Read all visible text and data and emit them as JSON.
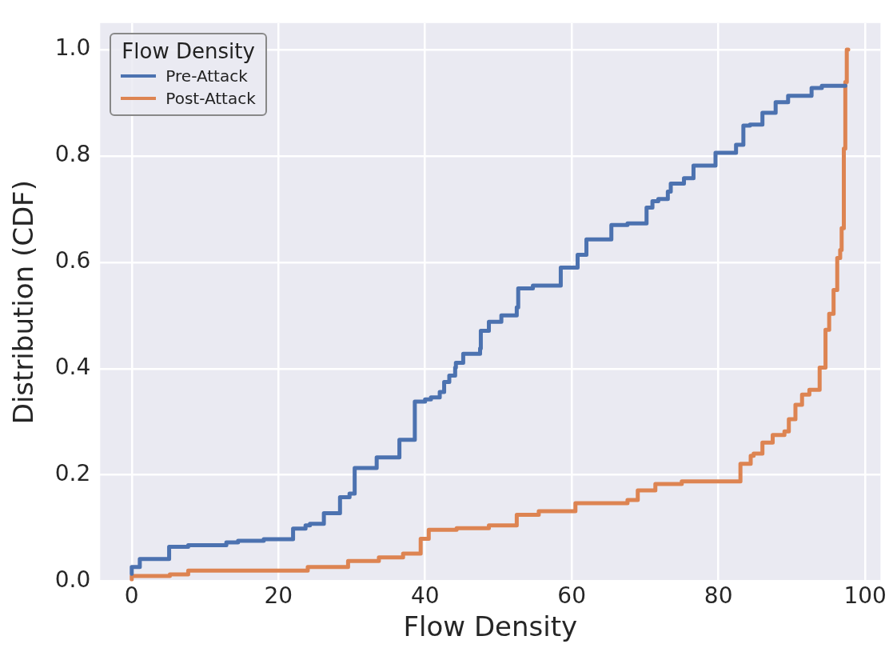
{
  "chart_data": {
    "type": "step",
    "xlabel": "Flow Density",
    "ylabel": "Distribution (CDF)",
    "legend_title": "Flow Density",
    "legend": "top left",
    "grid": true,
    "marker": "none",
    "line_style": "solid",
    "xlim": [
      -4.3,
      102.1
    ],
    "xticks": [
      0,
      20,
      40,
      60,
      80,
      100
    ],
    "ylim": [
      0,
      1.05
    ],
    "yticks": [
      {
        "value": 0,
        "label": "0.0"
      },
      0.2,
      0.4,
      0.6,
      0.8,
      {
        "value": 1,
        "label": "1.0"
      }
    ],
    "series": [
      {
        "name": "Pre-Attack",
        "color": "#4c72b0",
        "x": [
          0,
          1.1,
          5.1,
          7.7,
          12.9,
          14.5,
          18,
          22,
          23.7,
          24.3,
          26.2,
          28.4,
          29.7,
          30.4,
          33.4,
          36.5,
          38.6,
          40,
          40.8,
          42,
          42.6,
          43.3,
          44.1,
          44.2,
          45.2,
          47.5,
          47.6,
          48.7,
          50.4,
          52.5,
          52.7,
          54.7,
          58.5,
          60.8,
          62,
          65.4,
          67.6,
          70.2,
          71,
          71.8,
          73.1,
          73.5,
          75.3,
          76.6,
          79.6,
          82.4,
          83.4,
          84.3,
          86,
          87.8,
          89.5,
          92.7,
          94.1,
          96.6,
          97.3
        ],
        "values": [
          0.014,
          0.027,
          0.042,
          0.065,
          0.068,
          0.073,
          0.076,
          0.079,
          0.099,
          0.105,
          0.108,
          0.128,
          0.158,
          0.165,
          0.213,
          0.233,
          0.266,
          0.338,
          0.342,
          0.346,
          0.356,
          0.375,
          0.387,
          0.402,
          0.411,
          0.428,
          0.438,
          0.471,
          0.488,
          0.5,
          0.515,
          0.551,
          0.556,
          0.59,
          0.614,
          0.643,
          0.67,
          0.673,
          0.703,
          0.715,
          0.719,
          0.733,
          0.748,
          0.758,
          0.782,
          0.806,
          0.821,
          0.857,
          0.859,
          0.881,
          0.901,
          0.913,
          0.928,
          0.932,
          0.932
        ]
      },
      {
        "name": "Post-Attack",
        "color": "#dd8452",
        "x": [
          0,
          5.2,
          7.7,
          24,
          29.5,
          33.7,
          37,
          39.4,
          40.5,
          44.3,
          48.7,
          52.5,
          55.5,
          60.5,
          67.6,
          69,
          71.4,
          75,
          83,
          84.4,
          84.8,
          86,
          87.4,
          89,
          89.6,
          90.5,
          91.4,
          92.4,
          93.8,
          94.6,
          95.1,
          95.7,
          96.2,
          96.6,
          96.8,
          97.1,
          97.3,
          97.5,
          97.7
        ],
        "values": [
          0.003,
          0.01,
          0.013,
          0.02,
          0.027,
          0.038,
          0.045,
          0.052,
          0.08,
          0.097,
          0.1,
          0.105,
          0.125,
          0.132,
          0.147,
          0.153,
          0.171,
          0.183,
          0.188,
          0.221,
          0.236,
          0.24,
          0.261,
          0.275,
          0.282,
          0.305,
          0.332,
          0.351,
          0.36,
          0.402,
          0.473,
          0.503,
          0.548,
          0.608,
          0.623,
          0.664,
          0.814,
          0.939,
          1
        ]
      }
    ]
  }
}
